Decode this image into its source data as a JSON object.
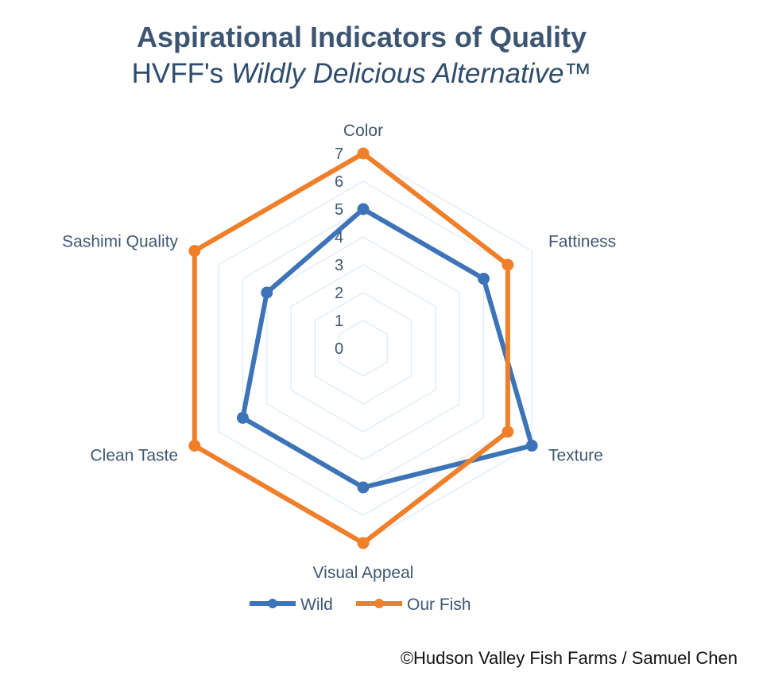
{
  "chart_data": {
    "type": "radar",
    "title": "Aspirational Indicators of Quality",
    "subtitle_prefix": "HVFF's ",
    "subtitle_italic": "Wildly Delicious Alternative™",
    "categories": [
      "Color",
      "Fattiness",
      "Texture",
      "Visual Appeal",
      "Clean Taste",
      "Sashimi Quality"
    ],
    "rlim": [
      0,
      7
    ],
    "ticks": [
      "0",
      "1",
      "2",
      "3",
      "4",
      "5",
      "6",
      "7"
    ],
    "grid": true,
    "legend_position": "bottom",
    "series": [
      {
        "name": "Wild",
        "values": [
          5,
          5,
          7,
          5,
          5,
          4
        ],
        "color": "#3d74b8"
      },
      {
        "name": "Our Fish",
        "values": [
          7,
          6,
          6,
          7,
          7,
          7
        ],
        "color": "#f07f2a"
      }
    ]
  },
  "footer": {
    "copyright": "©Hudson Valley Fish Farms / Samuel Chen"
  }
}
